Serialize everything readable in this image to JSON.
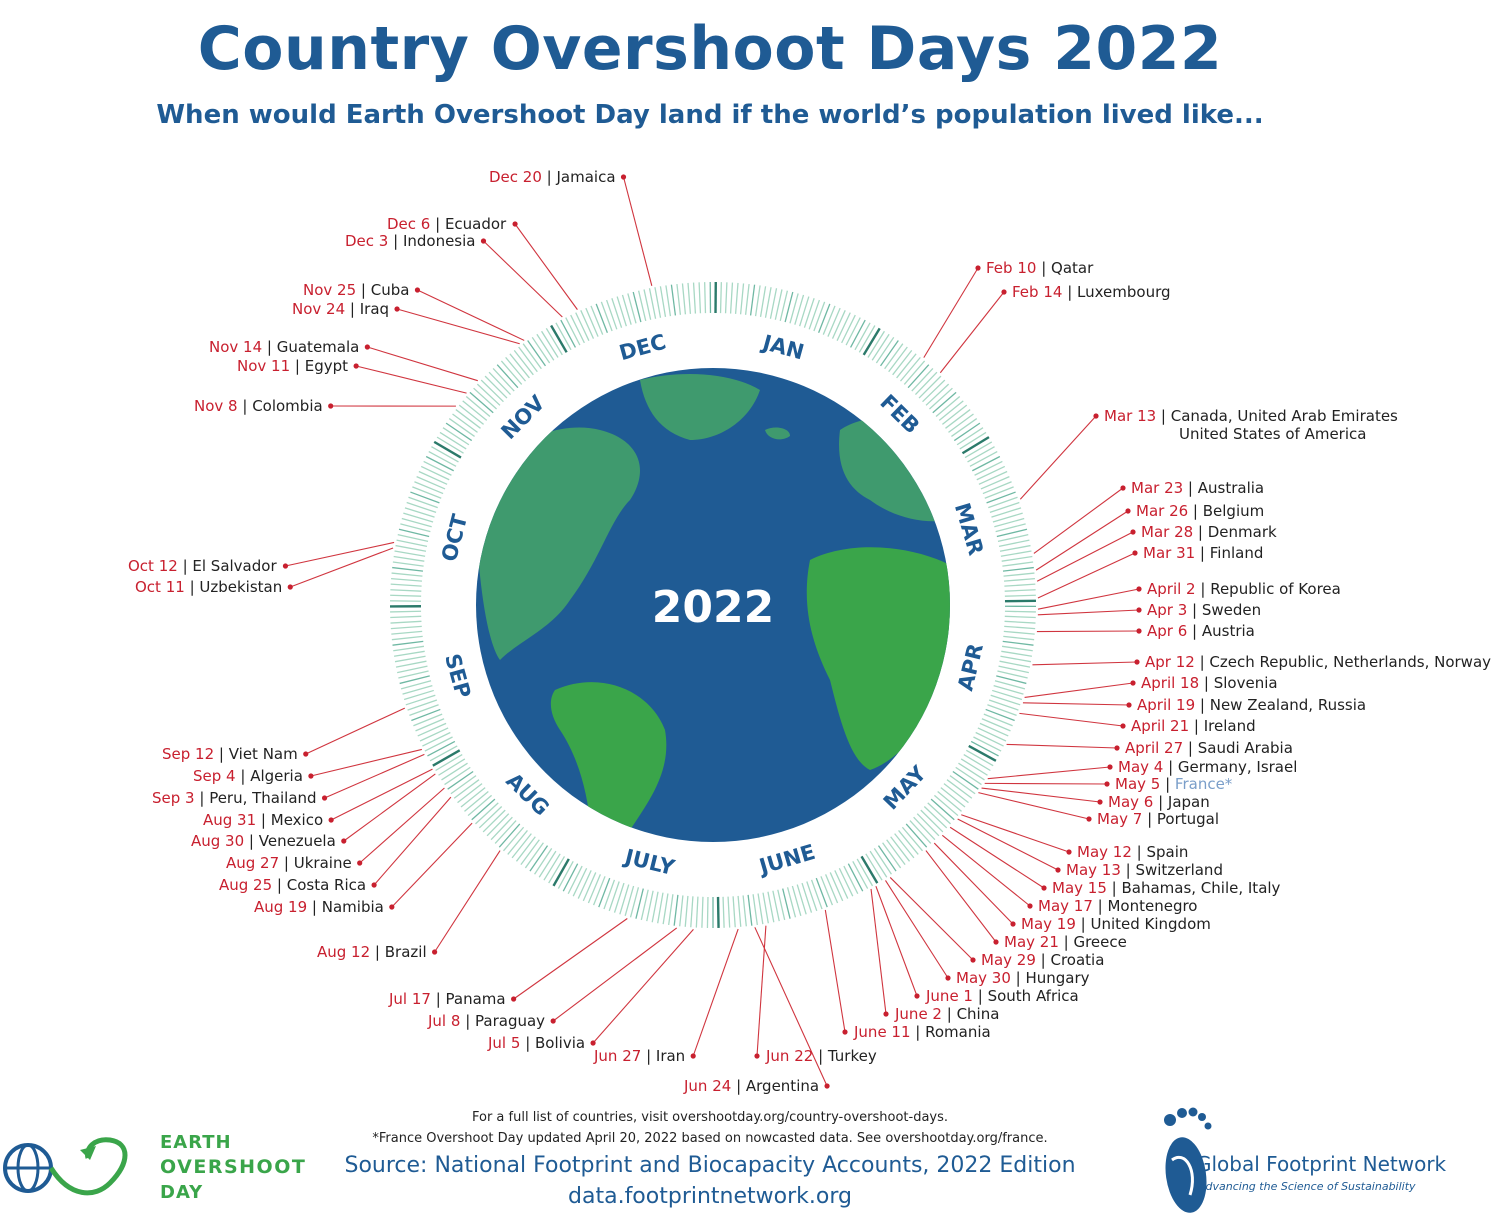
{
  "title": "Country Overshoot Days 2022",
  "subtitle": "When would Earth Overshoot Day land if the world’s population lived like...",
  "center_label": "2022",
  "months": [
    "JAN",
    "FEB",
    "MAR",
    "APR",
    "MAY",
    "JUNE",
    "JULY",
    "AUG",
    "SEP",
    "OCT",
    "NOV",
    "DEC"
  ],
  "colors": {
    "title": "#1f5b94",
    "date": "#c8202f",
    "ocean": "#1f5b94",
    "land": "#3aa54a",
    "ring": "#8fc9b5"
  },
  "entries": [
    {
      "day": 354,
      "date": "Dec 20",
      "country": "Jamaica"
    },
    {
      "day": 340,
      "date": "Dec 6",
      "country": "Ecuador"
    },
    {
      "day": 337,
      "date": "Dec 3",
      "country": "Indonesia"
    },
    {
      "day": 329,
      "date": "Nov 25",
      "country": "Cuba"
    },
    {
      "day": 328,
      "date": "Nov 24",
      "country": "Iraq"
    },
    {
      "day": 318,
      "date": "Nov 14",
      "country": "Guatemala"
    },
    {
      "day": 315,
      "date": "Nov 11",
      "country": "Egypt"
    },
    {
      "day": 312,
      "date": "Nov 8",
      "country": "Colombia"
    },
    {
      "day": 41,
      "date": "Feb 10",
      "country": "Qatar"
    },
    {
      "day": 45,
      "date": "Feb 14",
      "country": "Luxembourg"
    },
    {
      "day": 72,
      "date": "Mar 13",
      "country": "Canada, United Arab Emirates",
      "country2": "United States of America"
    },
    {
      "day": 82,
      "date": "Mar 23",
      "country": "Australia"
    },
    {
      "day": 85,
      "date": "Mar 26",
      "country": "Belgium"
    },
    {
      "day": 87,
      "date": "Mar 28",
      "country": "Denmark"
    },
    {
      "day": 90,
      "date": "Mar 31",
      "country": "Finland"
    },
    {
      "day": 92,
      "date": "April 2",
      "country": "Republic of Korea"
    },
    {
      "day": 93,
      "date": "Apr 3",
      "country": "Sweden"
    },
    {
      "day": 96,
      "date": "Apr 6",
      "country": "Austria"
    },
    {
      "day": 102,
      "date": "Apr 12",
      "country": "Czech Republic, Netherlands, Norway"
    },
    {
      "day": 108,
      "date": "April 18",
      "country": "Slovenia"
    },
    {
      "day": 109,
      "date": "April 19",
      "country": "New Zealand, Russia"
    },
    {
      "day": 111,
      "date": "April 21",
      "country": "Ireland"
    },
    {
      "day": 117,
      "date": "April 27",
      "country": "Saudi Arabia"
    },
    {
      "day": 124,
      "date": "May 4",
      "country": "Germany, Israel"
    },
    {
      "day": 125,
      "date": "May 5",
      "country": "France*",
      "faded": true
    },
    {
      "day": 126,
      "date": "May 6",
      "country": "Japan"
    },
    {
      "day": 127,
      "date": "May 7",
      "country": "Portugal"
    },
    {
      "day": 132,
      "date": "May 12",
      "country": "Spain"
    },
    {
      "day": 133,
      "date": "May 13",
      "country": "Switzerland"
    },
    {
      "day": 135,
      "date": "May 15",
      "country": "Bahamas, Chile, Italy"
    },
    {
      "day": 137,
      "date": "May 17",
      "country": "Montenegro"
    },
    {
      "day": 139,
      "date": "May 19",
      "country": "United Kingdom"
    },
    {
      "day": 141,
      "date": "May 21",
      "country": "Greece"
    },
    {
      "day": 149,
      "date": "May 29",
      "country": "Croatia"
    },
    {
      "day": 150,
      "date": "May 30",
      "country": "Hungary"
    },
    {
      "day": 152,
      "date": "June 1",
      "country": "South Africa"
    },
    {
      "day": 153,
      "date": "June 2",
      "country": "China"
    },
    {
      "day": 162,
      "date": "June 11",
      "country": "Romania"
    },
    {
      "day": 173,
      "date": "Jun 22",
      "country": "Turkey"
    },
    {
      "day": 175,
      "date": "Jun 24",
      "country": "Argentina"
    },
    {
      "day": 178,
      "date": "Jun 27",
      "country": "Iran"
    },
    {
      "day": 186,
      "date": "Jul 5",
      "country": "Bolivia"
    },
    {
      "day": 189,
      "date": "Jul 8",
      "country": "Paraguay"
    },
    {
      "day": 198,
      "date": "Jul 17",
      "country": "Panama"
    },
    {
      "day": 224,
      "date": "Aug 12",
      "country": "Brazil"
    },
    {
      "day": 231,
      "date": "Aug 19",
      "country": "Namibia"
    },
    {
      "day": 237,
      "date": "Aug 25",
      "country": "Costa Rica"
    },
    {
      "day": 239,
      "date": "Aug 27",
      "country": "Ukraine"
    },
    {
      "day": 242,
      "date": "Aug 30",
      "country": "Venezuela"
    },
    {
      "day": 243,
      "date": "Aug 31",
      "country": "Mexico"
    },
    {
      "day": 246,
      "date": "Sep 3",
      "country": "Peru, Thailand"
    },
    {
      "day": 247,
      "date": "Sep 4",
      "country": "Algeria"
    },
    {
      "day": 255,
      "date": "Sep 12",
      "country": "Viet Nam"
    },
    {
      "day": 284,
      "date": "Oct 11",
      "country": "Uzbekistan"
    },
    {
      "day": 285,
      "date": "Oct 12",
      "country": "El Salvador"
    }
  ],
  "footer": {
    "note1": "For a full list of countries, visit overshootday.org/country-overshoot-days.",
    "note2": "*France Overshoot Day updated April 20, 2022 based on nowcasted data. See overshootday.org/france.",
    "source": "Source: National Footprint and Biocapacity Accounts, 2022 Edition",
    "url": "data.footprintnetwork.org"
  },
  "logos": {
    "eod_line1": "EARTH",
    "eod_line2": "OVERSHOOT",
    "eod_line3": "DAY",
    "gfn_name": "Global Footprint Network",
    "gfn_tag": "Advancing the Science of Sustainability"
  }
}
